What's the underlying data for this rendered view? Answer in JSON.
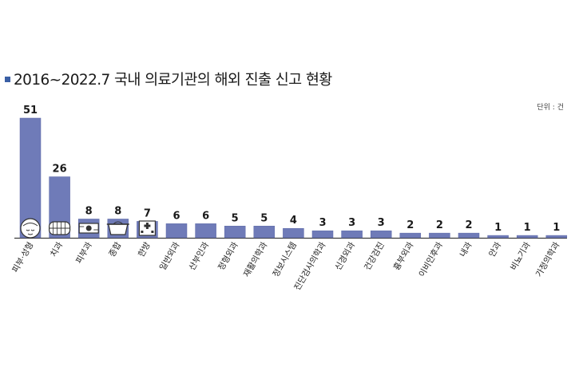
{
  "title": "2016~2022.7 국내 의료기관의 해외 진출 신고 현황",
  "unit": "단위 : 건",
  "colors": {
    "bar": "#6f7bb8",
    "bar_edge": "#5b67a6",
    "axis": "#3c3c3c",
    "marker": "#3a5fa5"
  },
  "chart_data": {
    "type": "bar",
    "title": "2016~2022.7 국내 의료기관의 해외 진출 신고 현황",
    "xlabel": "",
    "ylabel": "",
    "unit": "단위 : 건",
    "categories": [
      "피부·성형",
      "치과",
      "피부과",
      "종합",
      "한방",
      "일반외과",
      "산부인과",
      "정형외과",
      "재활의학과",
      "정보시스템",
      "진단검사의학과",
      "신경외과",
      "건강검진",
      "흉부외과",
      "이비인후과",
      "내과",
      "안과",
      "비뇨기과",
      "가정의학과"
    ],
    "values": [
      51,
      26,
      8,
      8,
      7,
      6,
      6,
      5,
      5,
      4,
      3,
      3,
      3,
      2,
      2,
      2,
      1,
      1,
      1
    ],
    "ylim": [
      0,
      51
    ],
    "grid": false,
    "legend": "none",
    "data_labels": true,
    "icons": [
      "face-mask-icon",
      "teeth-icon",
      "skin-device-icon",
      "medicine-pot-icon",
      "hospital-building-icon"
    ]
  }
}
